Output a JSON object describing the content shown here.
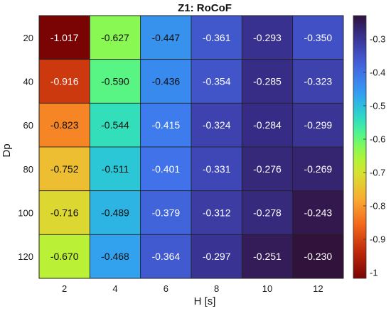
{
  "chart_data": {
    "type": "heatmap",
    "title": "Z1: RoCoF",
    "xlabel": "H [s]",
    "ylabel": "Dp",
    "x": [
      "2",
      "4",
      "6",
      "8",
      "10",
      "12"
    ],
    "y": [
      "20",
      "40",
      "60",
      "80",
      "100",
      "120"
    ],
    "values": [
      [
        -1.017,
        -0.627,
        -0.447,
        -0.361,
        -0.293,
        -0.35
      ],
      [
        -0.916,
        -0.59,
        -0.436,
        -0.354,
        -0.285,
        -0.323
      ],
      [
        -0.823,
        -0.544,
        -0.415,
        -0.324,
        -0.284,
        -0.299
      ],
      [
        -0.752,
        -0.511,
        -0.401,
        -0.331,
        -0.276,
        -0.269
      ],
      [
        -0.716,
        -0.489,
        -0.379,
        -0.312,
        -0.278,
        -0.243
      ],
      [
        -0.67,
        -0.468,
        -0.364,
        -0.297,
        -0.251,
        -0.23
      ]
    ],
    "cell_labels": [
      [
        "-1.017",
        "-0.627",
        "-0.447",
        "-0.361",
        "-0.293",
        "-0.350"
      ],
      [
        "-0.916",
        "-0.590",
        "-0.436",
        "-0.354",
        "-0.285",
        "-0.323"
      ],
      [
        "-0.823",
        "-0.544",
        "-0.415",
        "-0.324",
        "-0.284",
        "-0.299"
      ],
      [
        "-0.752",
        "-0.511",
        "-0.401",
        "-0.331",
        "-0.276",
        "-0.269"
      ],
      [
        "-0.716",
        "-0.489",
        "-0.379",
        "-0.312",
        "-0.278",
        "-0.243"
      ],
      [
        "-0.670",
        "-0.468",
        "-0.364",
        "-0.297",
        "-0.251",
        "-0.230"
      ]
    ],
    "colorbar": {
      "ticks": [
        "-0.3",
        "-0.4",
        "-0.5",
        "-0.6",
        "-0.7",
        "-0.8",
        "-0.9",
        "-1"
      ],
      "tick_values": [
        -0.3,
        -0.4,
        -0.5,
        -0.6,
        -0.7,
        -0.8,
        -0.9,
        -1.0
      ],
      "range": [
        -1.017,
        -0.23
      ]
    },
    "colormap": "turbo-reversed",
    "grid": true
  }
}
